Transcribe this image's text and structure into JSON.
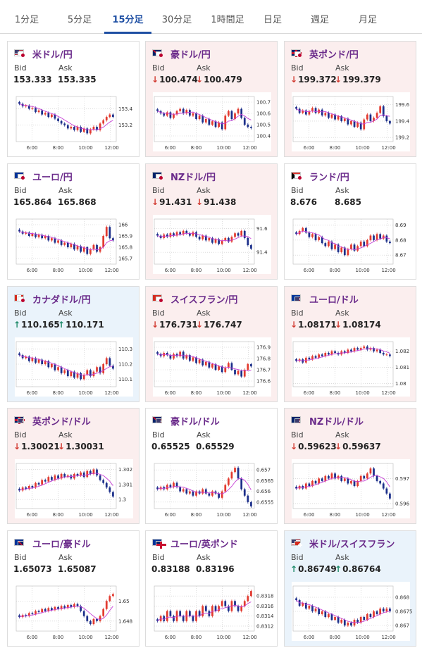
{
  "tabs": [
    {
      "label": "1分足",
      "active": false
    },
    {
      "label": "5分足",
      "active": false
    },
    {
      "label": "15分足",
      "active": true
    },
    {
      "label": "30分足",
      "active": false
    },
    {
      "label": "1時間足",
      "active": false
    },
    {
      "label": "日足",
      "active": false
    },
    {
      "label": "週足",
      "active": false
    },
    {
      "label": "月足",
      "active": false
    }
  ],
  "labels": {
    "bid": "Bid",
    "ask": "Ask"
  },
  "colors": {
    "up_candle": "#e23a2f",
    "down_candle": "#1c2f8a",
    "ma_line": "#c63fd6",
    "pair_text": "#6a2a8a",
    "arrow_down": "#d23b32",
    "arrow_up": "#1e8a6a"
  },
  "cards": [
    {
      "pair": "米ドル/円",
      "flag": "us-jp",
      "trend": "none",
      "bid": "153.333",
      "ask": "153.335",
      "chart_data": {
        "type": "candlestick",
        "x_ticks": [
          "6:00",
          "8:00",
          "10:00",
          "12:00"
        ],
        "y_ticks": [
          "153.4",
          "153.2"
        ],
        "ylim": [
          153.0,
          153.55
        ],
        "closes": [
          153.46,
          153.43,
          153.44,
          153.4,
          153.41,
          153.36,
          153.38,
          153.33,
          153.35,
          153.3,
          153.33,
          153.28,
          153.25,
          153.22,
          153.2,
          153.16,
          153.18,
          153.14,
          153.18,
          153.12,
          153.16,
          153.1,
          153.15,
          153.18,
          153.14,
          153.22,
          153.26,
          153.3,
          153.33,
          153.3
        ]
      }
    },
    {
      "pair": "豪ドル/円",
      "flag": "au-jp",
      "trend": "down",
      "bid": "100.474",
      "ask": "100.479",
      "chart_data": {
        "type": "candlestick",
        "x_ticks": [
          "6:00",
          "8:00",
          "10:00",
          "12:00"
        ],
        "y_ticks": [
          "100.7",
          "100.6",
          "100.5",
          "100.4"
        ],
        "ylim": [
          100.35,
          100.75
        ],
        "closes": [
          100.62,
          100.6,
          100.58,
          100.61,
          100.56,
          100.59,
          100.62,
          100.64,
          100.6,
          100.63,
          100.58,
          100.6,
          100.55,
          100.58,
          100.52,
          100.55,
          100.5,
          100.53,
          100.48,
          100.52,
          100.46,
          100.58,
          100.62,
          100.55,
          100.6,
          100.64,
          100.56,
          100.5,
          100.48,
          100.47
        ]
      }
    },
    {
      "pair": "英ポンド/円",
      "flag": "gb-jp",
      "trend": "down",
      "bid": "199.372",
      "ask": "199.379",
      "chart_data": {
        "type": "candlestick",
        "x_ticks": [
          "6:00",
          "8:00",
          "10:00",
          "12:00"
        ],
        "y_ticks": [
          "199.6",
          "199.4",
          "199.2"
        ],
        "ylim": [
          199.15,
          199.7
        ],
        "closes": [
          199.55,
          199.5,
          199.53,
          199.48,
          199.52,
          199.56,
          199.5,
          199.54,
          199.47,
          199.5,
          199.44,
          199.48,
          199.42,
          199.46,
          199.4,
          199.43,
          199.36,
          199.4,
          199.33,
          199.38,
          199.3,
          199.42,
          199.48,
          199.4,
          199.44,
          199.5,
          199.58,
          199.46,
          199.4,
          199.37
        ]
      }
    },
    {
      "pair": "ユーロ/円",
      "flag": "eu-jp",
      "trend": "none",
      "bid": "165.864",
      "ask": "165.868",
      "chart_data": {
        "type": "candlestick",
        "x_ticks": [
          "6:00",
          "8:00",
          "10:00",
          "12:00"
        ],
        "y_ticks": [
          "166",
          "165.9",
          "165.8",
          "165.7"
        ],
        "ylim": [
          165.65,
          166.05
        ],
        "closes": [
          165.94,
          165.92,
          165.93,
          165.9,
          165.92,
          165.89,
          165.91,
          165.88,
          165.9,
          165.86,
          165.88,
          165.84,
          165.86,
          165.82,
          165.84,
          165.8,
          165.83,
          165.78,
          165.81,
          165.76,
          165.8,
          165.74,
          165.78,
          165.82,
          165.76,
          165.8,
          165.9,
          165.98,
          165.88,
          165.86
        ]
      }
    },
    {
      "pair": "NZドル/円",
      "flag": "nz-jp",
      "trend": "down",
      "bid": "91.431",
      "ask": "91.438",
      "chart_data": {
        "type": "candlestick",
        "x_ticks": [
          "6:00",
          "8:00",
          "10:00",
          "12:00"
        ],
        "y_ticks": [
          "91.6",
          "91.4"
        ],
        "ylim": [
          91.3,
          91.68
        ],
        "closes": [
          91.54,
          91.52,
          91.55,
          91.53,
          91.56,
          91.54,
          91.57,
          91.55,
          91.58,
          91.56,
          91.54,
          91.57,
          91.53,
          91.51,
          91.54,
          91.5,
          91.52,
          91.48,
          91.51,
          91.47,
          91.5,
          91.52,
          91.49,
          91.53,
          91.56,
          91.54,
          91.58,
          91.52,
          91.46,
          91.43
        ]
      }
    },
    {
      "pair": "ランド/円",
      "flag": "za-jp",
      "trend": "none",
      "bid": "8.676",
      "ask": "8.685",
      "chart_data": {
        "type": "candlestick",
        "x_ticks": [
          "6:00",
          "8:00",
          "10:00",
          "12:00"
        ],
        "y_ticks": [
          "8.69",
          "8.68",
          "8.67"
        ],
        "ylim": [
          8.664,
          8.694
        ],
        "closes": [
          8.684,
          8.686,
          8.688,
          8.685,
          8.682,
          8.684,
          8.68,
          8.682,
          8.678,
          8.676,
          8.679,
          8.674,
          8.677,
          8.672,
          8.675,
          8.67,
          8.674,
          8.677,
          8.673,
          8.676,
          8.679,
          8.676,
          8.68,
          8.683,
          8.68,
          8.684,
          8.681,
          8.683,
          8.679,
          8.678
        ]
      }
    },
    {
      "pair": "カナダドル/円",
      "flag": "ca-jp",
      "trend": "up",
      "bid": "110.165",
      "ask": "110.171",
      "chart_data": {
        "type": "candlestick",
        "x_ticks": [
          "6:00",
          "8:00",
          "10:00",
          "12:00"
        ],
        "y_ticks": [
          "110.3",
          "110.2",
          "110.1"
        ],
        "ylim": [
          110.05,
          110.35
        ],
        "closes": [
          110.26,
          110.24,
          110.25,
          110.22,
          110.24,
          110.21,
          110.23,
          110.2,
          110.22,
          110.18,
          110.2,
          110.16,
          110.18,
          110.14,
          110.16,
          110.12,
          110.15,
          110.11,
          110.14,
          110.1,
          110.13,
          110.16,
          110.12,
          110.15,
          110.18,
          110.14,
          110.2,
          110.24,
          110.19,
          110.17
        ]
      }
    },
    {
      "pair": "スイスフラン/円",
      "flag": "ch-jp",
      "trend": "down",
      "bid": "176.731",
      "ask": "176.747",
      "chart_data": {
        "type": "candlestick",
        "x_ticks": [
          "6:00",
          "8:00",
          "10:00",
          "12:00"
        ],
        "y_ticks": [
          "176.9",
          "176.8",
          "176.7",
          "176.6"
        ],
        "ylim": [
          176.55,
          176.95
        ],
        "closes": [
          176.84,
          176.82,
          176.85,
          176.83,
          176.8,
          176.84,
          176.82,
          176.86,
          176.8,
          176.83,
          176.78,
          176.81,
          176.76,
          176.79,
          176.74,
          176.77,
          176.72,
          176.75,
          176.7,
          176.73,
          176.68,
          176.72,
          176.76,
          176.7,
          176.66,
          176.69,
          176.64,
          176.7,
          176.75,
          176.73
        ]
      }
    },
    {
      "pair": "ユーロ/ドル",
      "flag": "eu-us",
      "trend": "down",
      "bid": "1.08171",
      "ask": "1.08174",
      "chart_data": {
        "type": "candlestick",
        "x_ticks": [
          "6:00",
          "8:00",
          "10:00",
          "12:00"
        ],
        "y_ticks": [
          "1.082",
          "1.081",
          "1.08"
        ],
        "ylim": [
          1.0798,
          1.0826
        ],
        "closes": [
          1.0814,
          1.0815,
          1.0813,
          1.0816,
          1.0815,
          1.0817,
          1.0816,
          1.0818,
          1.0817,
          1.0819,
          1.0818,
          1.082,
          1.0819,
          1.0818,
          1.082,
          1.0819,
          1.0821,
          1.082,
          1.0822,
          1.0821,
          1.0822,
          1.0823,
          1.0821,
          1.0822,
          1.082,
          1.0821,
          1.0819,
          1.0818,
          1.0818,
          1.0817
        ]
      }
    },
    {
      "pair": "英ポンド/ドル",
      "flag": "gb-us",
      "trend": "down",
      "bid": "1.30021",
      "ask": "1.30031",
      "chart_data": {
        "type": "candlestick",
        "x_ticks": [
          "6:00",
          "8:00",
          "10:00",
          "12:00"
        ],
        "y_ticks": [
          "1.302",
          "1.301",
          "1.3"
        ],
        "ylim": [
          1.2994,
          1.3024
        ],
        "closes": [
          1.3006,
          1.3008,
          1.3007,
          1.3009,
          1.3008,
          1.3011,
          1.301,
          1.3013,
          1.3012,
          1.3015,
          1.3013,
          1.3016,
          1.3014,
          1.3017,
          1.3015,
          1.3016,
          1.3014,
          1.3017,
          1.3016,
          1.3018,
          1.3015,
          1.3019,
          1.3017,
          1.302,
          1.3016,
          1.3013,
          1.3011,
          1.3008,
          1.3005,
          1.3002
        ]
      }
    },
    {
      "pair": "豪ドル/ドル",
      "flag": "au-us",
      "trend": "none",
      "bid": "0.65525",
      "ask": "0.65529",
      "chart_data": {
        "type": "candlestick",
        "x_ticks": [
          "6:00",
          "8:00",
          "10:00",
          "12:00"
        ],
        "y_ticks": [
          "0.657",
          "0.6565",
          "0.656",
          "0.6555"
        ],
        "ylim": [
          0.6552,
          0.6573
        ],
        "closes": [
          0.6561,
          0.6562,
          0.6561,
          0.6563,
          0.6562,
          0.6564,
          0.6562,
          0.656,
          0.6561,
          0.6559,
          0.656,
          0.6558,
          0.656,
          0.6559,
          0.6561,
          0.6559,
          0.6558,
          0.656,
          0.6559,
          0.6557,
          0.656,
          0.6563,
          0.6566,
          0.6569,
          0.6571,
          0.6566,
          0.6561,
          0.6558,
          0.6555,
          0.6553
        ]
      }
    },
    {
      "pair": "NZドル/ドル",
      "flag": "nz-us",
      "trend": "down",
      "bid": "0.59623",
      "ask": "0.59637",
      "chart_data": {
        "type": "candlestick",
        "x_ticks": [
          "6:00",
          "8:00",
          "10:00",
          "12:00"
        ],
        "y_ticks": [
          "0.597",
          "0.596"
        ],
        "ylim": [
          0.5958,
          0.5976
        ],
        "closes": [
          0.5966,
          0.5967,
          0.5966,
          0.5968,
          0.5967,
          0.5969,
          0.5968,
          0.597,
          0.5969,
          0.5971,
          0.597,
          0.5972,
          0.597,
          0.5971,
          0.5969,
          0.597,
          0.5968,
          0.5969,
          0.5967,
          0.5969,
          0.5971,
          0.597,
          0.5972,
          0.5974,
          0.5971,
          0.5969,
          0.5968,
          0.5966,
          0.5964,
          0.5962
        ]
      }
    },
    {
      "pair": "ユーロ/豪ドル",
      "flag": "eu-au",
      "trend": "none",
      "bid": "1.65073",
      "ask": "1.65087",
      "chart_data": {
        "type": "candlestick",
        "x_ticks": [
          "6:00",
          "8:00",
          "10:00",
          "12:00"
        ],
        "y_ticks": [
          "1.65",
          "1.648"
        ],
        "ylim": [
          1.647,
          1.6515
        ],
        "closes": [
          1.6484,
          1.6486,
          1.6485,
          1.6488,
          1.6487,
          1.649,
          1.6489,
          1.6492,
          1.649,
          1.6493,
          1.6491,
          1.6494,
          1.6492,
          1.6495,
          1.6493,
          1.6496,
          1.6494,
          1.6497,
          1.6495,
          1.649,
          1.6485,
          1.648,
          1.6477,
          1.6482,
          1.648,
          1.6485,
          1.6492,
          1.65,
          1.6505,
          1.6507
        ]
      }
    },
    {
      "pair": "ユーロ/英ポンド",
      "flag": "eu-gb",
      "trend": "none",
      "bid": "0.83188",
      "ask": "0.83196",
      "chart_data": {
        "type": "candlestick",
        "x_ticks": [
          "6:00",
          "8:00",
          "10:00",
          "12:00"
        ],
        "y_ticks": [
          "0.8318",
          "0.8316",
          "0.8314",
          "0.8312"
        ],
        "ylim": [
          0.8311,
          0.832
        ],
        "closes": [
          0.8313,
          0.8314,
          0.8313,
          0.8315,
          0.8314,
          0.8313,
          0.8315,
          0.8314,
          0.8313,
          0.8315,
          0.8314,
          0.8313,
          0.8315,
          0.8314,
          0.8316,
          0.8315,
          0.8314,
          0.8316,
          0.8315,
          0.8316,
          0.8317,
          0.8316,
          0.8315,
          0.8317,
          0.8316,
          0.8315,
          0.8316,
          0.8317,
          0.8318,
          0.8319
        ]
      }
    },
    {
      "pair": "米ドル/スイスフラン",
      "flag": "us-ch",
      "trend": "up",
      "bid": "0.86749",
      "ask": "0.86764",
      "chart_data": {
        "type": "candlestick",
        "x_ticks": [
          "6:00",
          "8:00",
          "10:00",
          "12:00"
        ],
        "y_ticks": [
          "0.868",
          "0.8675",
          "0.867"
        ],
        "ylim": [
          0.8668,
          0.8684
        ],
        "closes": [
          0.8679,
          0.8677,
          0.8678,
          0.8676,
          0.8677,
          0.8675,
          0.8676,
          0.8674,
          0.8675,
          0.8673,
          0.8674,
          0.8672,
          0.8673,
          0.8671,
          0.8672,
          0.867,
          0.8671,
          0.867,
          0.8672,
          0.8671,
          0.8673,
          0.8672,
          0.8674,
          0.8673,
          0.8675,
          0.8674,
          0.8676,
          0.8675,
          0.8676,
          0.8675
        ]
      }
    }
  ]
}
